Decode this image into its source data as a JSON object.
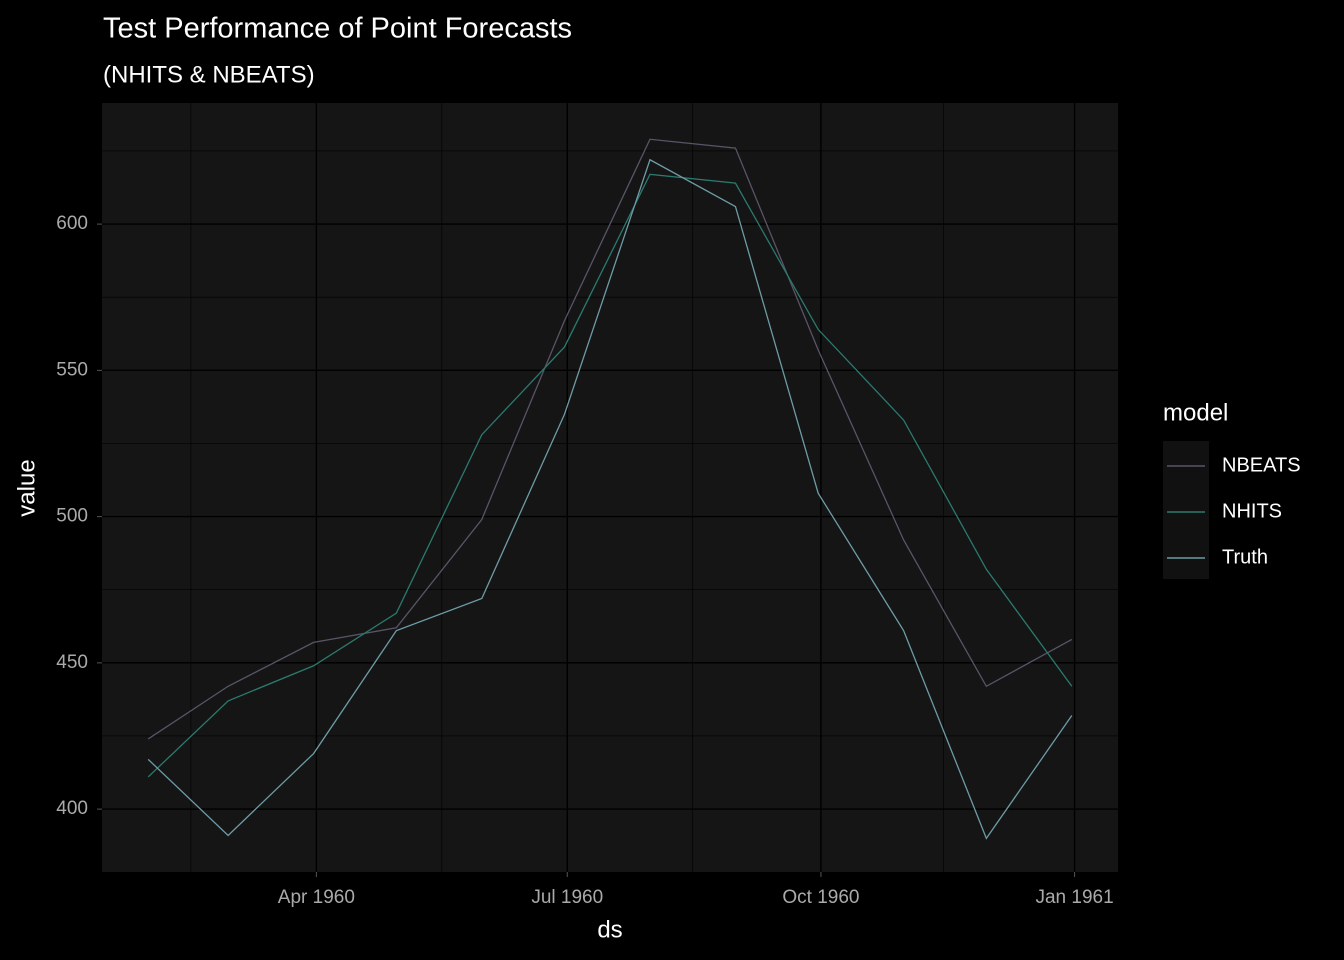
{
  "chart_data": {
    "type": "line",
    "title": "Test Performance of Point Forecasts",
    "subtitle": "(NHITS & NBEATS)",
    "x_label": "ds",
    "y_label": "value",
    "legend_title": "model",
    "legend_position": "right",
    "x": [
      "1960-01",
      "1960-02",
      "1960-03",
      "1960-04",
      "1960-05",
      "1960-06",
      "1960-07",
      "1960-08",
      "1960-09",
      "1960-10",
      "1960-11",
      "1960-12"
    ],
    "series": [
      {
        "name": "NBEATS",
        "color": "#5a5468",
        "values": [
          424,
          442,
          457,
          462,
          499,
          567,
          629,
          626,
          557,
          492,
          442,
          458
        ]
      },
      {
        "name": "NHITS",
        "color": "#2b7a6e",
        "values": [
          411,
          437,
          449,
          467,
          528,
          558,
          617,
          614,
          564,
          533,
          482,
          442
        ]
      },
      {
        "name": "Truth",
        "color": "#6d9ca6",
        "values": [
          417,
          391,
          419,
          461,
          472,
          535,
          622,
          606,
          508,
          461,
          390,
          432
        ]
      }
    ],
    "xticks": [
      {
        "value": "1960-04",
        "label": "Apr 1960"
      },
      {
        "value": "1960-07",
        "label": "Jul 1960"
      },
      {
        "value": "1960-10",
        "label": "Oct 1960"
      },
      {
        "value": "1961-01",
        "label": "Jan 1961"
      }
    ],
    "ylim": [
      378.5,
      641.4
    ],
    "yticks": [
      400,
      450,
      500,
      550,
      600
    ],
    "grid": true
  }
}
